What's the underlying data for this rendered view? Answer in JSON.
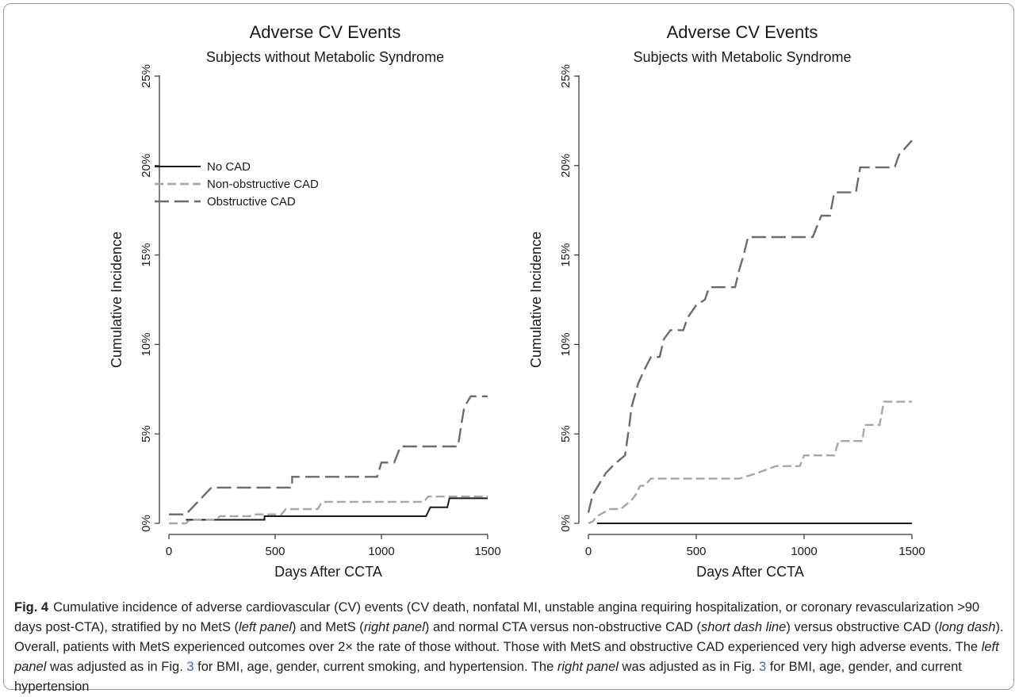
{
  "chart_data": [
    {
      "type": "line",
      "title": "Adverse CV Events",
      "subtitle": "Subjects without Metabolic Syndrome",
      "xlabel": "Days After CCTA",
      "ylabel": "Cumulative Incidence",
      "xlim": [
        0,
        1500
      ],
      "ylim": [
        0,
        25
      ],
      "xticks": [
        "0",
        "500",
        "1000",
        "1500"
      ],
      "yticks": [
        "0%",
        "5%",
        "10%",
        "15%",
        "20%",
        "25%"
      ],
      "grid": false,
      "legend_position": "upper-left",
      "series": [
        {
          "name": "No CAD",
          "style": "solid",
          "color": "#1a1a1a",
          "points": [
            [
              80,
              0.2
            ],
            [
              450,
              0.2
            ],
            [
              450,
              0.4
            ],
            [
              1210,
              0.4
            ],
            [
              1230,
              0.9
            ],
            [
              1310,
              0.9
            ],
            [
              1320,
              1.4
            ],
            [
              1500,
              1.4
            ]
          ]
        },
        {
          "name": "Non-obstructive CAD",
          "style": "short-dash",
          "color": "#a6a6a6",
          "points": [
            [
              0,
              0
            ],
            [
              80,
              0
            ],
            [
              100,
              0.2
            ],
            [
              220,
              0.2
            ],
            [
              240,
              0.4
            ],
            [
              380,
              0.4
            ],
            [
              400,
              0.5
            ],
            [
              530,
              0.5
            ],
            [
              550,
              0.8
            ],
            [
              700,
              0.8
            ],
            [
              720,
              1.2
            ],
            [
              1200,
              1.2
            ],
            [
              1220,
              1.5
            ],
            [
              1500,
              1.5
            ]
          ]
        },
        {
          "name": "Obstructive CAD",
          "style": "long-dash",
          "color": "#6b6b6b",
          "points": [
            [
              0,
              0.5
            ],
            [
              80,
              0.5
            ],
            [
              200,
              2.0
            ],
            [
              580,
              2.0
            ],
            [
              580,
              2.6
            ],
            [
              980,
              2.6
            ],
            [
              1000,
              3.4
            ],
            [
              1060,
              3.4
            ],
            [
              1090,
              4.3
            ],
            [
              1360,
              4.3
            ],
            [
              1380,
              5.8
            ],
            [
              1390,
              6.5
            ],
            [
              1420,
              7.1
            ],
            [
              1500,
              7.1
            ]
          ]
        }
      ]
    },
    {
      "type": "line",
      "title": "Adverse CV Events",
      "subtitle": "Subjects with Metabolic Syndrome",
      "xlabel": "Days After CCTA",
      "ylabel": "Cumulative Incidence",
      "xlim": [
        0,
        1500
      ],
      "ylim": [
        0,
        25
      ],
      "xticks": [
        "0",
        "500",
        "1000",
        "1500"
      ],
      "yticks": [
        "0%",
        "5%",
        "10%",
        "15%",
        "20%",
        "25%"
      ],
      "grid": false,
      "series": [
        {
          "name": "No CAD",
          "style": "solid",
          "color": "#1a1a1a",
          "points": [
            [
              40,
              0
            ],
            [
              1500,
              0
            ]
          ]
        },
        {
          "name": "Non-obstructive CAD",
          "style": "short-dash",
          "color": "#a6a6a6",
          "points": [
            [
              0,
              0
            ],
            [
              20,
              0.1
            ],
            [
              40,
              0.4
            ],
            [
              100,
              0.8
            ],
            [
              150,
              0.8
            ],
            [
              200,
              1.3
            ],
            [
              220,
              1.6
            ],
            [
              240,
              2.1
            ],
            [
              260,
              2.1
            ],
            [
              290,
              2.5
            ],
            [
              700,
              2.5
            ],
            [
              780,
              2.8
            ],
            [
              870,
              3.2
            ],
            [
              980,
              3.2
            ],
            [
              1000,
              3.8
            ],
            [
              1140,
              3.8
            ],
            [
              1160,
              4.6
            ],
            [
              1270,
              4.6
            ],
            [
              1280,
              5.5
            ],
            [
              1350,
              5.5
            ],
            [
              1370,
              6.8
            ],
            [
              1500,
              6.8
            ]
          ]
        },
        {
          "name": "Obstructive CAD",
          "style": "long-dash",
          "color": "#6b6b6b",
          "points": [
            [
              0,
              0.6
            ],
            [
              20,
              1.6
            ],
            [
              40,
              2.0
            ],
            [
              80,
              2.8
            ],
            [
              120,
              3.3
            ],
            [
              170,
              3.8
            ],
            [
              190,
              5.5
            ],
            [
              200,
              6.5
            ],
            [
              230,
              7.8
            ],
            [
              260,
              8.6
            ],
            [
              290,
              9.3
            ],
            [
              330,
              9.3
            ],
            [
              350,
              10.3
            ],
            [
              380,
              10.8
            ],
            [
              440,
              10.8
            ],
            [
              460,
              11.5
            ],
            [
              500,
              12.2
            ],
            [
              540,
              12.5
            ],
            [
              560,
              13.2
            ],
            [
              680,
              13.2
            ],
            [
              700,
              14.2
            ],
            [
              720,
              15.0
            ],
            [
              740,
              16.0
            ],
            [
              1040,
              16.0
            ],
            [
              1060,
              16.6
            ],
            [
              1080,
              17.2
            ],
            [
              1120,
              17.2
            ],
            [
              1140,
              18.5
            ],
            [
              1240,
              18.5
            ],
            [
              1260,
              19.9
            ],
            [
              1420,
              19.9
            ],
            [
              1440,
              20.6
            ],
            [
              1500,
              21.4
            ]
          ]
        }
      ]
    }
  ],
  "caption": {
    "label": "Fig. 4",
    "segments": [
      {
        "text": "Cumulative incidence of adverse cardiovascular (CV) events (CV death, nonfatal MI, unstable angina requiring hospitalization, or coronary revascularization >90 days post-CTA), stratified by no MetS (",
        "style": "normal"
      },
      {
        "text": "left panel",
        "style": "italic"
      },
      {
        "text": ") and MetS (",
        "style": "normal"
      },
      {
        "text": "right panel",
        "style": "italic"
      },
      {
        "text": ") and normal CTA versus non-obstructive CAD (",
        "style": "normal"
      },
      {
        "text": "short dash line",
        "style": "italic"
      },
      {
        "text": ") versus obstructive CAD (",
        "style": "normal"
      },
      {
        "text": "long dash",
        "style": "italic"
      },
      {
        "text": "). Overall, patients with MetS experienced outcomes over 2× the rate of those without. Those with MetS and obstructive CAD experienced very high adverse events. The ",
        "style": "normal"
      },
      {
        "text": "left panel",
        "style": "italic"
      },
      {
        "text": " was adjusted as in Fig. ",
        "style": "normal"
      },
      {
        "text": "3",
        "style": "ref"
      },
      {
        "text": " for BMI, age, gender, current smoking, and hypertension. The ",
        "style": "normal"
      },
      {
        "text": "right panel",
        "style": "italic"
      },
      {
        "text": " was adjusted as in Fig. ",
        "style": "normal"
      },
      {
        "text": "3",
        "style": "ref"
      },
      {
        "text": " for BMI, age, gender, and current hypertension",
        "style": "normal"
      }
    ]
  }
}
